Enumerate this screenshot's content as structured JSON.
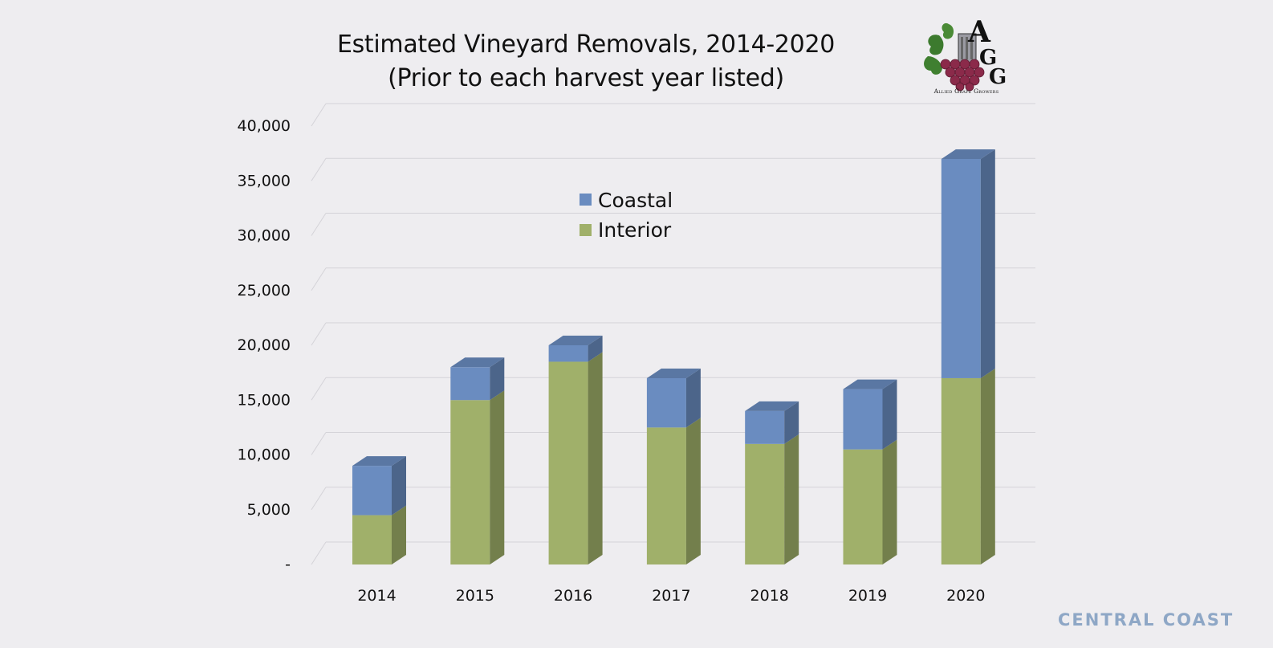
{
  "chart_data": {
    "type": "bar",
    "stacked": true,
    "title": "Estimated Vineyard Removals, 2014-2020",
    "subtitle": "(Prior to each harvest year listed)",
    "categories": [
      "2014",
      "2015",
      "2016",
      "2017",
      "2018",
      "2019",
      "2020"
    ],
    "series": [
      {
        "name": "Interior",
        "color": "#a0b06a",
        "values": [
          4500,
          15000,
          18500,
          12500,
          11000,
          10500,
          17000
        ]
      },
      {
        "name": "Coastal",
        "color": "#6a8cc0",
        "values": [
          4500,
          3000,
          1500,
          4500,
          3000,
          5500,
          20000
        ]
      }
    ],
    "ylim": [
      0,
      40000
    ],
    "yticks": [
      "-",
      "5,000",
      "10,000",
      "15,000",
      "20,000",
      "25,000",
      "30,000",
      "35,000",
      "40,000"
    ],
    "grid": true,
    "legend": {
      "placement": "inside-top-center",
      "order": [
        "Coastal",
        "Interior"
      ]
    }
  },
  "logo": {
    "letters": "AGG",
    "caption": "Allied Grape Growers"
  },
  "watermark": {
    "text": "CENTRAL COAST"
  }
}
